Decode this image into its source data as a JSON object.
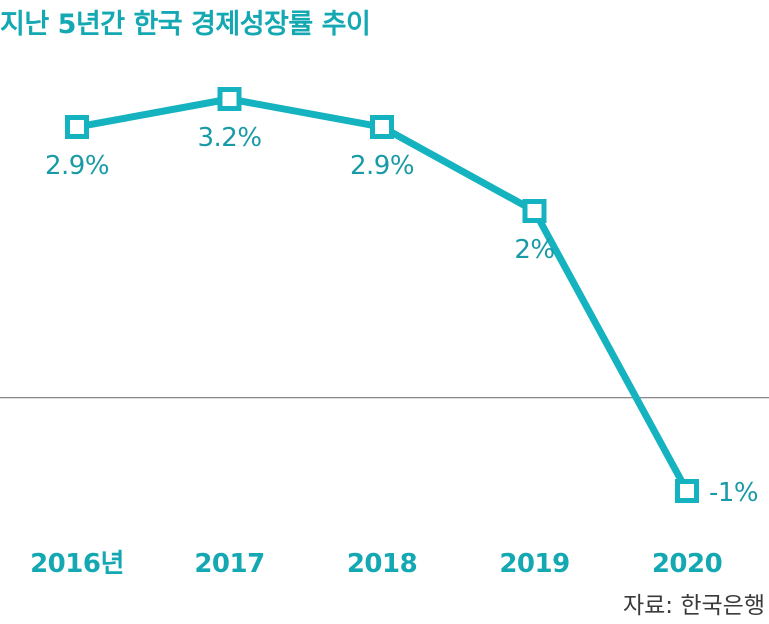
{
  "title": "지난 5년간 한국 경제성장률 추이",
  "source": "자료: 한국은행",
  "colors": {
    "series": "#14b3bf",
    "title": "#14a8b3",
    "axis_labels": "#14a8b3",
    "value_labels": "#1a9aa6",
    "zero_line": "#777777",
    "source": "#3a3a3a"
  },
  "chart_data": {
    "type": "line",
    "title": "지난 5년간 한국 경제성장률 추이",
    "categories": [
      "2016년",
      "2017",
      "2018",
      "2019",
      "2020"
    ],
    "series": [
      {
        "values": [
          2.9,
          3.2,
          2.9,
          2.0,
          -1.0
        ],
        "labels": [
          "2.9%",
          "3.2%",
          "2.9%",
          "2%",
          "-1%"
        ],
        "marker": "hollow-square"
      }
    ],
    "ylim": [
      -1.0,
      3.2
    ],
    "baseline": 0,
    "xlabel": "",
    "ylabel": "",
    "grid": false,
    "legend": "none"
  }
}
